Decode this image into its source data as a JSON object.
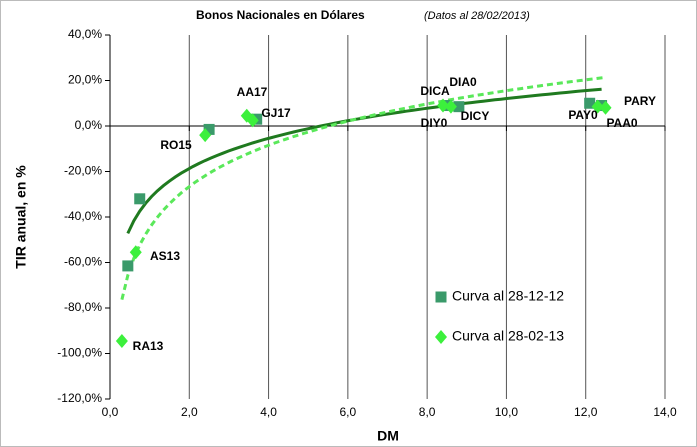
{
  "chart_data": {
    "type": "scatter",
    "title": "Bonos Nacionales en Dólares",
    "subtitle": "(Datos al 28/02/2013)",
    "x_label": "DM",
    "y_label": "TIR anual, en %",
    "xlim": [
      0,
      14
    ],
    "ylim": [
      -120,
      40
    ],
    "xticks": [
      {
        "value": 0,
        "label": "0,0"
      },
      {
        "value": 2,
        "label": "2,0"
      },
      {
        "value": 4,
        "label": "4,0"
      },
      {
        "value": 6,
        "label": "6,0"
      },
      {
        "value": 8,
        "label": "8,0"
      },
      {
        "value": 10,
        "label": "10,0"
      },
      {
        "value": 12,
        "label": "12,0"
      },
      {
        "value": 14,
        "label": "14,0"
      }
    ],
    "yticks": [
      {
        "value": 40,
        "label": "40,0%"
      },
      {
        "value": 20,
        "label": "20,0%"
      },
      {
        "value": 0,
        "label": "0,0%"
      },
      {
        "value": -20,
        "label": "-20,0%"
      },
      {
        "value": -40,
        "label": "-40,0%"
      },
      {
        "value": -60,
        "label": "-60,0%"
      },
      {
        "value": -80,
        "label": "-80,0%"
      },
      {
        "value": -100,
        "label": "-100,0%"
      },
      {
        "value": -120,
        "label": "-120,0%"
      }
    ],
    "grid": "vertical",
    "legend": "lower right",
    "series": [
      {
        "name": "Curva al 28-12-12",
        "color": "#3a9a6a",
        "marker": "square",
        "trendline": "logarithmic",
        "trend_color": "#1f7a1f",
        "trend_style": "solid",
        "x": [
          0.45,
          0.75,
          2.5,
          3.7,
          8.5,
          8.8,
          12.1,
          12.4
        ],
        "values": [
          -61.5,
          -32,
          -1.5,
          3,
          9,
          8.5,
          10,
          9
        ]
      },
      {
        "name": "Curva al 28-02-13",
        "color": "#3cf03c",
        "marker": "diamond",
        "trendline": "logarithmic",
        "trend_color": "#5ae85a",
        "trend_style": "dashed",
        "x": [
          0.3,
          0.65,
          2.4,
          3.45,
          3.6,
          8.4,
          8.6,
          12.3,
          12.5
        ],
        "values": [
          -94.5,
          -55.5,
          -4,
          4.5,
          2.5,
          9,
          8.5,
          8.5,
          8
        ]
      }
    ],
    "annotations": [
      "RA13",
      "AS13",
      "RO15",
      "AA17",
      "GJ17",
      "DICA",
      "DIA0",
      "DIY0",
      "DICY",
      "PAY0",
      "PAA0",
      "PARY"
    ]
  }
}
